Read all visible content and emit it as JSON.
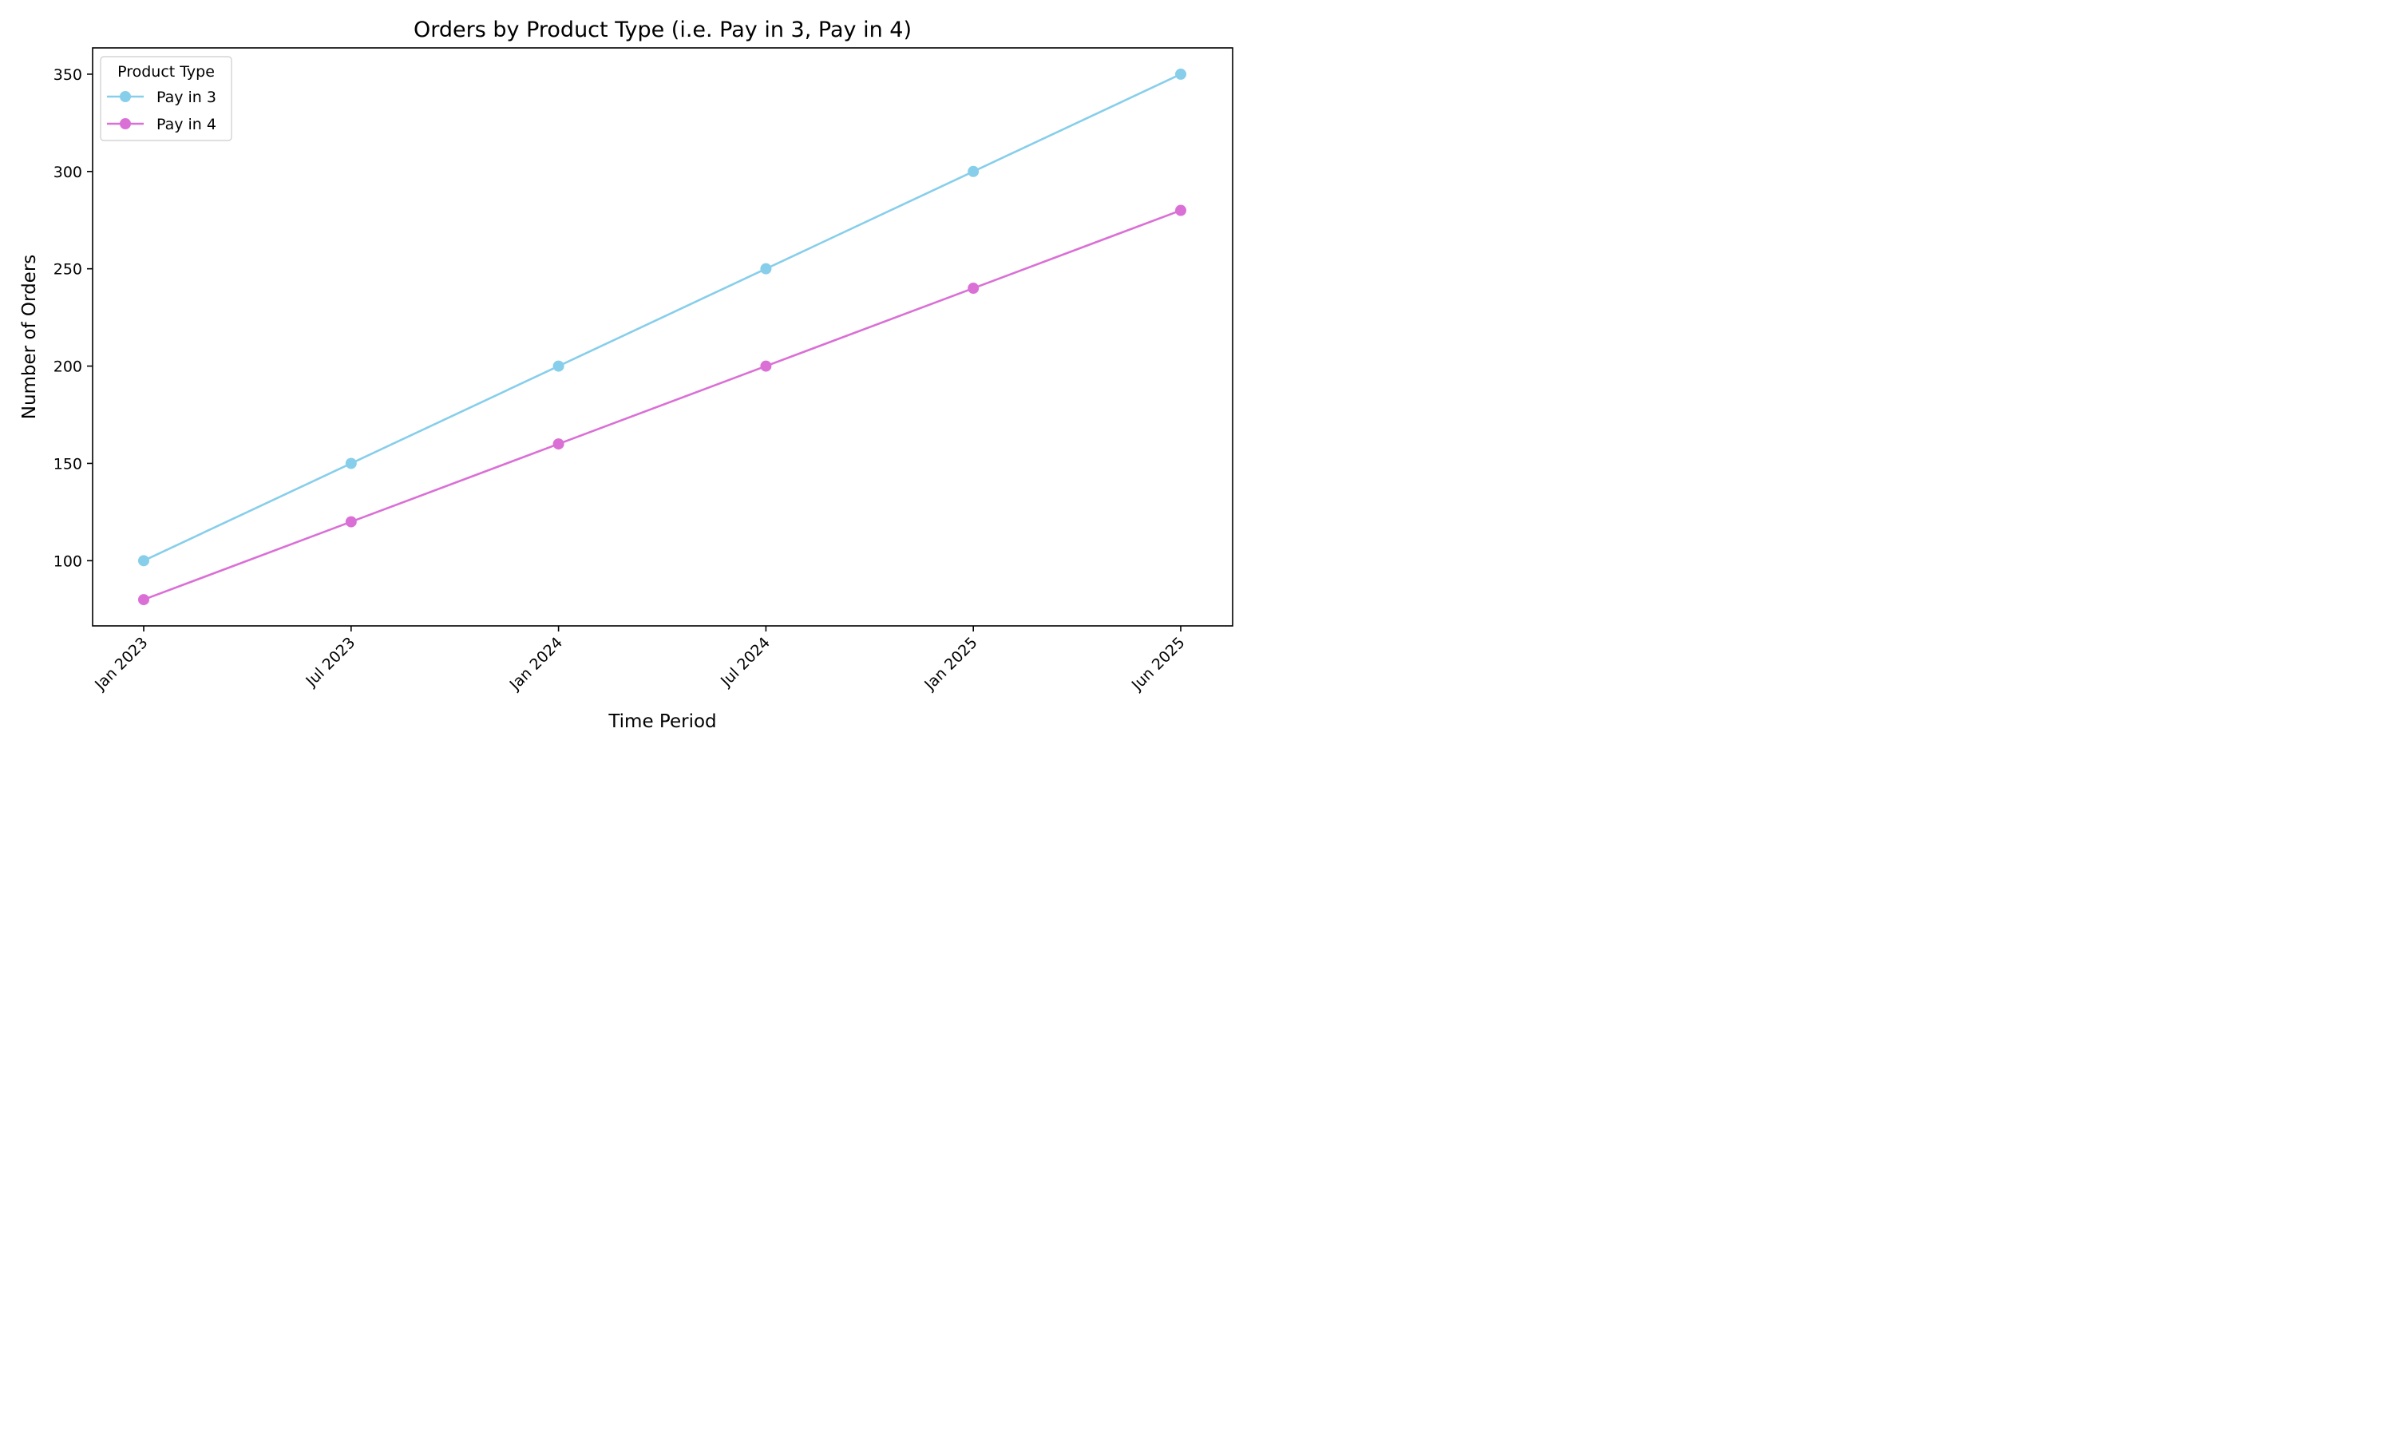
{
  "chart_data": {
    "type": "line",
    "title": "Orders by Product Type (i.e. Pay in 3, Pay in 4)",
    "xlabel": "Time Period",
    "ylabel": "Number of Orders",
    "categories": [
      "Jan 2023",
      "Jul 2023",
      "Jan 2024",
      "Jul 2024",
      "Jan 2025",
      "Jun 2025"
    ],
    "series": [
      {
        "name": "Pay in 3",
        "color": "#87CEEB",
        "values": [
          100,
          150,
          200,
          250,
          300,
          350
        ]
      },
      {
        "name": "Pay in 4",
        "color": "#DA70D6",
        "values": [
          80,
          120,
          160,
          200,
          240,
          280
        ]
      }
    ],
    "ylim": [
      66.5,
      363.5
    ],
    "yticks": [
      100,
      150,
      200,
      250,
      300,
      350
    ],
    "grid": false,
    "legend": {
      "title": "Product Type",
      "placement": "top-left"
    }
  }
}
